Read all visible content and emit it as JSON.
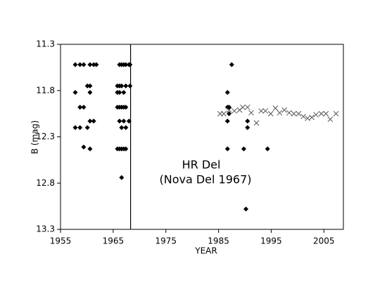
{
  "chart_data": {
    "type": "scatter",
    "xlabel": "YEAR",
    "ylabel": "B (mag)",
    "xlim": [
      1955,
      2008.7
    ],
    "ylim": [
      11.3,
      13.3
    ],
    "invert_y": true,
    "xticks": [
      1955,
      1965,
      1975,
      1985,
      1995,
      2005
    ],
    "yticks": [
      11.3,
      11.8,
      12.3,
      12.8,
      13.3
    ],
    "vline_x": 1968.3,
    "annotations": [
      "HR Del",
      "(Nova Del 1967)"
    ],
    "series": [
      {
        "marker": "diamond",
        "color": "#000000",
        "x": [
          1957.8,
          1957.8,
          1957.8,
          1958.7,
          1958.7,
          1958.7,
          1959.4,
          1959.4,
          1959.4,
          1960.1,
          1960.1,
          1960.6,
          1960.6,
          1960.6,
          1960.6,
          1960.6,
          1961.3,
          1961.3,
          1961.8,
          1965.8,
          1965.8,
          1965.8,
          1965.8,
          1966.2,
          1966.2,
          1966.2,
          1966.2,
          1966.2,
          1966.2,
          1966.6,
          1966.6,
          1966.6,
          1966.6,
          1966.6,
          1966.6,
          1967.0,
          1967.0,
          1967.0,
          1967.0,
          1967.0,
          1967.4,
          1967.4,
          1967.4,
          1967.4,
          1967.4,
          1968.0,
          1968.0,
          1968.2,
          1968.2,
          1986.7,
          1986.7,
          1986.7,
          1986.7,
          1987.0,
          1987.0,
          1987.5,
          1989.8,
          1990.2,
          1990.5,
          1990.5,
          1994.3
        ],
        "values": [
          11.52,
          11.82,
          12.2,
          11.52,
          11.98,
          12.2,
          11.52,
          11.98,
          12.41,
          11.75,
          12.2,
          11.52,
          11.75,
          11.82,
          12.13,
          12.43,
          11.52,
          12.13,
          11.52,
          11.75,
          11.82,
          11.98,
          12.43,
          11.52,
          11.75,
          11.82,
          11.98,
          12.13,
          12.43,
          11.52,
          11.75,
          11.98,
          12.2,
          12.43,
          12.74,
          11.52,
          11.82,
          11.98,
          12.13,
          12.43,
          11.52,
          11.75,
          11.98,
          12.2,
          12.43,
          11.52,
          12.13,
          11.52,
          11.75,
          11.82,
          11.98,
          12.13,
          12.43,
          11.98,
          12.05,
          11.52,
          12.43,
          13.08,
          12.13,
          12.2,
          12.43
        ]
      },
      {
        "marker": "x",
        "color": "#555555",
        "x": [
          1985.3,
          1986.0,
          1987.0,
          1988.0,
          1989.0,
          1989.6,
          1990.5,
          1991.2,
          1992.2,
          1993.1,
          1993.9,
          1994.9,
          1995.8,
          1996.6,
          1997.5,
          1998.4,
          1999.3,
          2000.2,
          2001.1,
          2001.9,
          2002.7,
          2003.5,
          2004.5,
          2005.4,
          2006.2,
          2007.3
        ],
        "values": [
          12.05,
          12.05,
          12.01,
          12.02,
          12.01,
          11.98,
          11.98,
          12.04,
          12.15,
          12.02,
          12.02,
          12.05,
          11.99,
          12.04,
          12.01,
          12.04,
          12.05,
          12.05,
          12.08,
          12.1,
          12.09,
          12.06,
          12.05,
          12.05,
          12.11,
          12.05
        ]
      }
    ]
  }
}
